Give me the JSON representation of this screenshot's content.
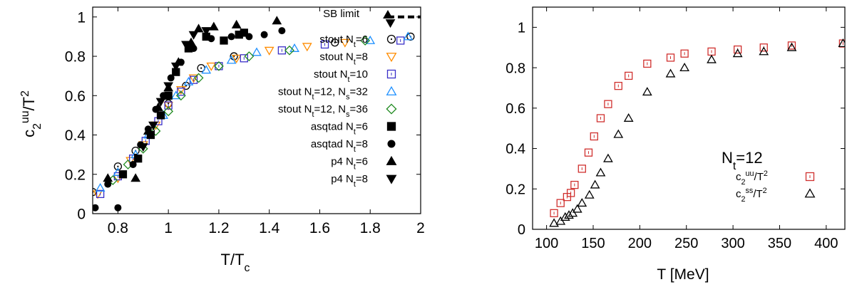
{
  "chart_data": [
    {
      "type": "scatter",
      "title": "",
      "xlabel": "T/T",
      "xlabel_sub": "c",
      "ylabel": "c",
      "ylabel_sub": "2",
      "ylabel_sup": "uu",
      "ylabel_tail": "/T",
      "ylabel_tail_sup": "2",
      "xlim": [
        0.7,
        2.0
      ],
      "ylim": [
        0,
        1.05
      ],
      "xticks": [
        {
          "v": 0.8,
          "label": "0.8"
        },
        {
          "v": 1.0,
          "label": "1"
        },
        {
          "v": 1.2,
          "label": "1.2"
        },
        {
          "v": 1.4,
          "label": "1.4"
        },
        {
          "v": 1.6,
          "label": "1.6"
        },
        {
          "v": 1.8,
          "label": "1.8"
        },
        {
          "v": 2.0,
          "label": "2"
        }
      ],
      "yticks": [
        {
          "v": 0,
          "label": "0"
        },
        {
          "v": 0.2,
          "label": "0.2"
        },
        {
          "v": 0.4,
          "label": "0.4"
        },
        {
          "v": 0.6,
          "label": "0.6"
        },
        {
          "v": 0.8,
          "label": "0.8"
        },
        {
          "v": 1.0,
          "label": "1"
        }
      ],
      "grid": false,
      "legend_position": "right",
      "sb_limit": {
        "label": "SB limit",
        "value": 1.0,
        "x_range": [
          1.87,
          2.0
        ]
      },
      "series": [
        {
          "name": "stout N",
          "sub": "t",
          "tail": "=6",
          "marker": "circle-dot",
          "color": "#000000",
          "points": [
            [
              0.7,
              0.11
            ],
            [
              0.8,
              0.24
            ],
            [
              0.87,
              0.32
            ],
            [
              0.93,
              0.42
            ],
            [
              1.0,
              0.56
            ],
            [
              1.07,
              0.65
            ],
            [
              1.13,
              0.74
            ],
            [
              1.26,
              0.8
            ],
            [
              1.66,
              0.87
            ],
            [
              1.96,
              0.9
            ]
          ]
        },
        {
          "name": "stout N",
          "sub": "t",
          "tail": "=8",
          "marker": "triangle-down",
          "color": "#ff8c00",
          "points": [
            [
              0.72,
              0.1
            ],
            [
              0.8,
              0.18
            ],
            [
              0.85,
              0.27
            ],
            [
              0.9,
              0.35
            ],
            [
              0.95,
              0.45
            ],
            [
              1.0,
              0.55
            ],
            [
              1.05,
              0.63
            ],
            [
              1.1,
              0.69
            ],
            [
              1.17,
              0.75
            ],
            [
              1.27,
              0.79
            ],
            [
              1.4,
              0.83
            ],
            [
              1.55,
              0.85
            ],
            [
              1.7,
              0.87
            ]
          ]
        },
        {
          "name": "stout N",
          "sub": "t",
          "tail": "=10",
          "marker": "square-dot",
          "color": "#3a2fc8",
          "points": [
            [
              0.73,
              0.1
            ],
            [
              0.8,
              0.19
            ],
            [
              0.86,
              0.28
            ],
            [
              0.91,
              0.37
            ],
            [
              0.96,
              0.47
            ],
            [
              1.0,
              0.55
            ],
            [
              1.05,
              0.62
            ],
            [
              1.1,
              0.68
            ],
            [
              1.2,
              0.75
            ],
            [
              1.3,
              0.79
            ],
            [
              1.45,
              0.83
            ],
            [
              1.62,
              0.86
            ],
            [
              1.92,
              0.88
            ]
          ]
        },
        {
          "name": "stout N",
          "sub": "t",
          "tail": "=12, N",
          "sub2": "s",
          "tail2": "=32",
          "marker": "triangle-up",
          "color": "#1e90ff",
          "points": [
            [
              0.73,
              0.13
            ],
            [
              0.8,
              0.21
            ],
            [
              0.87,
              0.3
            ],
            [
              0.92,
              0.4
            ],
            [
              0.98,
              0.5
            ],
            [
              1.03,
              0.6
            ],
            [
              1.08,
              0.67
            ],
            [
              1.15,
              0.73
            ],
            [
              1.25,
              0.78
            ],
            [
              1.35,
              0.82
            ],
            [
              1.5,
              0.84
            ],
            [
              1.8,
              0.88
            ],
            [
              1.95,
              0.9
            ]
          ]
        },
        {
          "name": "stout N",
          "sub": "t",
          "tail": "=12, N",
          "sub2": "s",
          "tail2": "=36",
          "marker": "diamond",
          "color": "#228b22",
          "points": [
            [
              0.78,
              0.17
            ],
            [
              0.84,
              0.25
            ],
            [
              0.9,
              0.33
            ],
            [
              0.95,
              0.42
            ],
            [
              1.0,
              0.52
            ],
            [
              1.05,
              0.6
            ],
            [
              1.12,
              0.69
            ],
            [
              1.2,
              0.75
            ],
            [
              1.32,
              0.8
            ],
            [
              1.48,
              0.83
            ],
            [
              1.78,
              0.88
            ]
          ]
        },
        {
          "name": "asqtad N",
          "sub": "t",
          "tail": "=6",
          "marker": "square-filled",
          "color": "#000000",
          "points": [
            [
              0.82,
              0.2
            ],
            [
              0.88,
              0.28
            ],
            [
              0.93,
              0.4
            ],
            [
              0.97,
              0.5
            ],
            [
              1.0,
              0.6
            ],
            [
              1.03,
              0.72
            ],
            [
              1.08,
              0.84
            ],
            [
              1.15,
              0.9
            ],
            [
              1.22,
              0.88
            ],
            [
              1.28,
              0.91
            ],
            [
              1.3,
              0.92
            ]
          ]
        },
        {
          "name": "asqtad N",
          "sub": "t",
          "tail": "=8",
          "marker": "circle-filled",
          "color": "#000000",
          "points": [
            [
              0.71,
              0.03
            ],
            [
              0.76,
              0.15
            ],
            [
              0.8,
              0.03
            ],
            [
              0.86,
              0.25
            ],
            [
              0.89,
              0.35
            ],
            [
              0.92,
              0.43
            ],
            [
              0.95,
              0.53
            ],
            [
              0.98,
              0.6
            ],
            [
              1.01,
              0.69
            ],
            [
              1.05,
              0.77
            ],
            [
              1.1,
              0.84
            ],
            [
              1.17,
              0.89
            ],
            [
              1.25,
              0.9
            ],
            [
              1.32,
              0.9
            ],
            [
              1.38,
              0.91
            ],
            [
              1.45,
              0.93
            ]
          ]
        },
        {
          "name": "p4 N",
          "sub": "t",
          "tail": "=6",
          "marker": "triangle-up-filled",
          "color": "#000000",
          "points": [
            [
              0.76,
              0.18
            ],
            [
              0.87,
              0.18
            ],
            [
              0.92,
              0.42
            ],
            [
              0.96,
              0.54
            ],
            [
              1.0,
              0.64
            ],
            [
              1.04,
              0.77
            ],
            [
              1.09,
              0.87
            ],
            [
              1.12,
              0.94
            ],
            [
              1.18,
              0.95
            ],
            [
              1.27,
              0.96
            ],
            [
              1.43,
              0.98
            ],
            [
              1.87,
              1.01
            ]
          ]
        },
        {
          "name": "p4 N",
          "sub": "t",
          "tail": "=8",
          "marker": "triangle-down-filled",
          "color": "#000000",
          "points": [
            [
              0.9,
              0.34
            ],
            [
              0.94,
              0.45
            ],
            [
              0.97,
              0.57
            ],
            [
              1.0,
              0.65
            ],
            [
              1.03,
              0.75
            ],
            [
              1.07,
              0.86
            ],
            [
              1.1,
              0.91
            ],
            [
              1.15,
              0.93
            ],
            [
              1.88,
              0.97
            ]
          ]
        }
      ]
    },
    {
      "type": "scatter",
      "title": "",
      "xlabel": "T [MeV]",
      "ylabel": "",
      "xlim": [
        85,
        420
      ],
      "ylim": [
        0,
        1.1
      ],
      "xticks": [
        {
          "v": 100,
          "label": "100"
        },
        {
          "v": 150,
          "label": "150"
        },
        {
          "v": 200,
          "label": "200"
        },
        {
          "v": 250,
          "label": "250"
        },
        {
          "v": 300,
          "label": "300"
        },
        {
          "v": 350,
          "label": "350"
        },
        {
          "v": 400,
          "label": "400"
        }
      ],
      "yticks": [
        {
          "v": 0,
          "label": "0"
        },
        {
          "v": 0.2,
          "label": "0.2"
        },
        {
          "v": 0.4,
          "label": "0.4"
        },
        {
          "v": 0.6,
          "label": "0.6"
        },
        {
          "v": 0.8,
          "label": "0.8"
        },
        {
          "v": 1.0,
          "label": "1"
        }
      ],
      "grid": false,
      "legend_position": "bottom-right",
      "legend_title": {
        "text": "N",
        "sub": "t",
        "tail": "=12"
      },
      "series": [
        {
          "name": "c",
          "sub": "2",
          "sup": "uu",
          "tail": "/T",
          "tail_sup": "2",
          "marker": "square-dot",
          "color": "#d0302e",
          "x": [
            108,
            115,
            122,
            126,
            130,
            138,
            145,
            151,
            158,
            166,
            177,
            188,
            208,
            233,
            248,
            277,
            305,
            333,
            363,
            418
          ],
          "y": [
            0.08,
            0.13,
            0.16,
            0.18,
            0.22,
            0.3,
            0.38,
            0.46,
            0.55,
            0.62,
            0.71,
            0.76,
            0.82,
            0.85,
            0.87,
            0.88,
            0.89,
            0.9,
            0.91,
            0.92
          ]
        },
        {
          "name": "c",
          "sub": "2",
          "sup": "ss",
          "tail": "/T",
          "tail_sup": "2",
          "marker": "triangle-up",
          "color": "#000000",
          "x": [
            108,
            115,
            120,
            124,
            128,
            133,
            138,
            146,
            152,
            158,
            166,
            177,
            188,
            208,
            233,
            248,
            277,
            305,
            333,
            363,
            418
          ],
          "y": [
            0.03,
            0.04,
            0.06,
            0.07,
            0.08,
            0.1,
            0.13,
            0.17,
            0.22,
            0.28,
            0.35,
            0.47,
            0.55,
            0.68,
            0.77,
            0.8,
            0.84,
            0.87,
            0.88,
            0.9,
            0.92
          ]
        }
      ]
    }
  ]
}
